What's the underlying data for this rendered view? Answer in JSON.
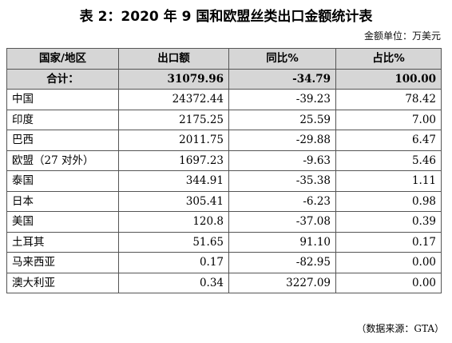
{
  "title": "表 2：2020 年 9 国和欧盟丝类出口金额统计表",
  "unit": "金额单位：万美元",
  "headers": [
    "国家/地区",
    "出口额",
    "同比%",
    "占比%"
  ],
  "total": {
    "name": "合计：",
    "export": "31079.96",
    "yoy": "-34.79",
    "share": "100.00"
  },
  "rows": [
    {
      "name": "中国",
      "export": "24372.44",
      "yoy": "-39.23",
      "share": "78.42"
    },
    {
      "name": "印度",
      "export": "2175.25",
      "yoy": "25.59",
      "share": "7.00"
    },
    {
      "name": "巴西",
      "export": "2011.75",
      "yoy": "-29.88",
      "share": "6.47"
    },
    {
      "name": "欧盟（27 对外）",
      "export": "1697.23",
      "yoy": "-9.63",
      "share": "5.46"
    },
    {
      "name": "泰国",
      "export": "344.91",
      "yoy": "-35.38",
      "share": "1.11"
    },
    {
      "name": "日本",
      "export": "305.41",
      "yoy": "-6.23",
      "share": "0.98"
    },
    {
      "name": "美国",
      "export": "120.8",
      "yoy": "-37.08",
      "share": "0.39"
    },
    {
      "name": "土耳其",
      "export": "51.65",
      "yoy": "91.10",
      "share": "0.17"
    },
    {
      "name": "马来西亚",
      "export": "0.17",
      "yoy": "-82.95",
      "share": "0.00"
    },
    {
      "name": "澳大利亚",
      "export": "0.34",
      "yoy": "3227.09",
      "share": "0.00"
    }
  ],
  "source": "（数据来源：GTA）"
}
